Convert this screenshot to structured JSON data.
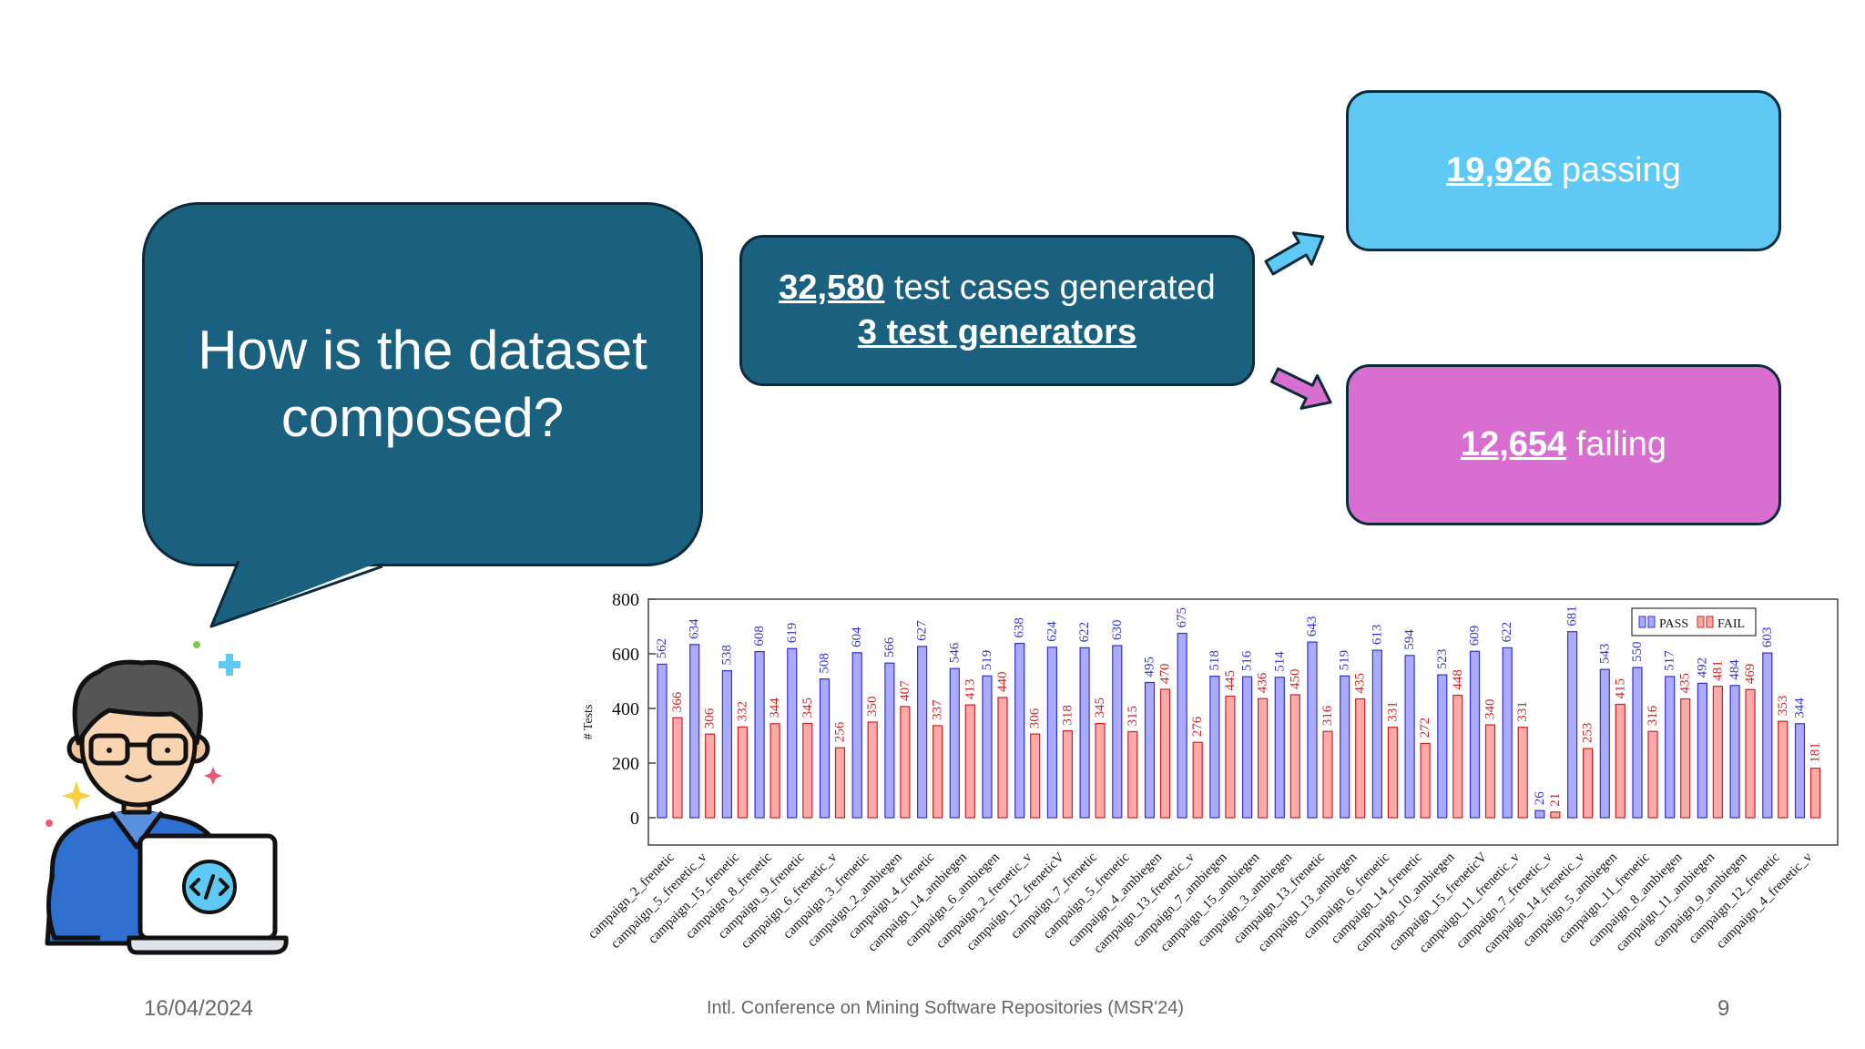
{
  "question": "How is the dataset composed?",
  "generated": {
    "number": "32,580",
    "text": " test cases generated",
    "generators": "3 test generators"
  },
  "passing": {
    "number": "19,926",
    "text": " passing"
  },
  "failing": {
    "number": "12,654",
    "text": " failing"
  },
  "colors": {
    "bubble": "#1a6180",
    "passing": "#5ec9f5",
    "failing": "#d86ecf",
    "pass_bar": "#aaaaff",
    "fail_bar": "#ffaaaa"
  },
  "footer": {
    "date": "16/04/2024",
    "conference": "Intl. Conference on Mining Software Repositories (MSR'24)",
    "page": "9"
  },
  "chart_data": {
    "type": "bar",
    "ylabel": "# Tests",
    "ylim": [
      -100,
      800
    ],
    "yticks": [
      0,
      200,
      400,
      600,
      800
    ],
    "legend_position": "top-right",
    "categories": [
      "campaign_2_frenetic",
      "campaign_5_frenetic_v",
      "campaign_15_frenetic",
      "campaign_8_frenetic",
      "campaign_9_frenetic",
      "campaign_6_frenetic_v",
      "campaign_3_frenetic",
      "campaign_2_ambiegen",
      "campaign_4_frenetic",
      "campaign_14_ambiegen",
      "campaign_6_ambiegen",
      "campaign_2_frenetic_v",
      "campaign_12_freneticV",
      "campaign_7_frenetic",
      "campaign_5_frenetic",
      "campaign_4_ambiegen",
      "campaign_13_frenetic_v",
      "campaign_7_ambiegen",
      "campaign_15_ambiegen",
      "campaign_3_ambiegen",
      "campaign_13_frenetic",
      "campaign_13_ambiegen",
      "campaign_6_frenetic",
      "campaign_14_frenetic",
      "campaign_10_ambiegen",
      "campaign_15_freneticV",
      "campaign_11_frenetic_v",
      "campaign_7_frenetic_v",
      "campaign_14_frenetic_v",
      "campaign_5_ambiegen",
      "campaign_11_frenetic",
      "campaign_8_ambiegen",
      "campaign_11_ambiegen",
      "campaign_9_ambiegen",
      "campaign_12_frenetic",
      "campaign_4_frenetic_v"
    ],
    "series": [
      {
        "name": "PASS",
        "color": "#aaaaff",
        "label_color": "#3333cc",
        "values": [
          562,
          634,
          538,
          608,
          619,
          508,
          604,
          566,
          627,
          546,
          519,
          638,
          624,
          622,
          630,
          495,
          675,
          518,
          516,
          514,
          643,
          519,
          613,
          594,
          523,
          609,
          622,
          26,
          681,
          543,
          550,
          517,
          492,
          484,
          603,
          344
        ]
      },
      {
        "name": "FAIL",
        "color": "#ffaaaa",
        "label_color": "#cc2222",
        "values": [
          366,
          306,
          332,
          344,
          345,
          256,
          350,
          407,
          337,
          413,
          440,
          306,
          318,
          345,
          315,
          470,
          276,
          445,
          436,
          450,
          316,
          435,
          331,
          272,
          448,
          340,
          331,
          21,
          253,
          415,
          316,
          435,
          481,
          469,
          353,
          181
        ]
      }
    ]
  }
}
